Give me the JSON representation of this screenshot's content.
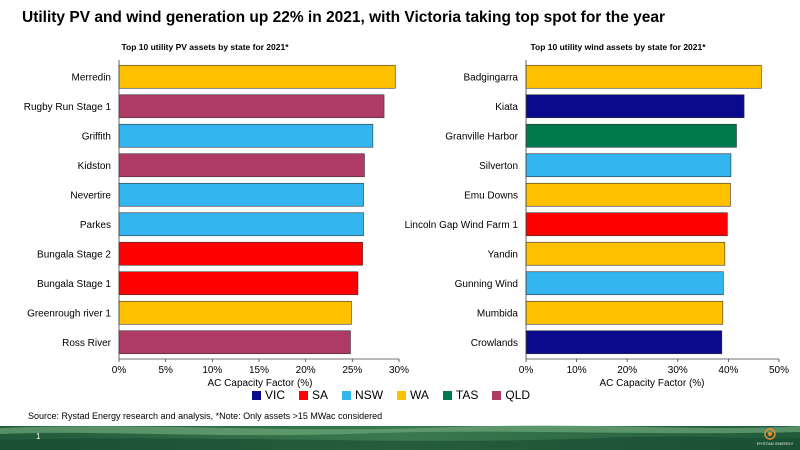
{
  "title": "Utility PV and wind generation up 22% in 2021, with Victoria taking top spot for the year",
  "source": "Source: Rystad Energy research and analysis, *Note: Only assets >15 MWac considered",
  "page_number": "1",
  "logo_text": "RYSTAD ENERGY",
  "colors": {
    "VIC": "#0a0a8c",
    "SA": "#ff0000",
    "NSW": "#33b5f0",
    "WA": "#ffc000",
    "TAS": "#007a4c",
    "QLD": "#b03a66"
  },
  "legend": [
    {
      "key": "VIC",
      "label": "VIC"
    },
    {
      "key": "SA",
      "label": "SA"
    },
    {
      "key": "NSW",
      "label": "NSW"
    },
    {
      "key": "WA",
      "label": "WA"
    },
    {
      "key": "TAS",
      "label": "TAS"
    },
    {
      "key": "QLD",
      "label": "QLD"
    }
  ],
  "chart_data": [
    {
      "type": "bar",
      "orientation": "horizontal",
      "title": "Top 10 utility PV assets by state for 2021*",
      "xlabel": "AC Capacity Factor (%)",
      "xlim": [
        0,
        30
      ],
      "ticks": [
        "0%",
        "5%",
        "10%",
        "15%",
        "20%",
        "25%",
        "30%"
      ],
      "categories": [
        "Merredin",
        "Rugby Run Stage 1",
        "Griffith",
        "Kidston",
        "Nevertire",
        "Parkes",
        "Bungala Stage 2",
        "Bungala Stage 1",
        "Greenrough river 1",
        "Ross River"
      ],
      "values": [
        29.6,
        28.4,
        27.2,
        26.3,
        26.2,
        26.2,
        26.1,
        25.6,
        24.9,
        24.8
      ],
      "states": [
        "WA",
        "QLD",
        "NSW",
        "QLD",
        "NSW",
        "NSW",
        "SA",
        "SA",
        "WA",
        "QLD"
      ]
    },
    {
      "type": "bar",
      "orientation": "horizontal",
      "title": "Top 10 utility wind assets by state for 2021*",
      "xlabel": "AC Capacity Factor (%)",
      "xlim": [
        0,
        50
      ],
      "ticks": [
        "0%",
        "10%",
        "20%",
        "30%",
        "40%",
        "50%"
      ],
      "categories": [
        "Badgingarra",
        "Kiata",
        "Granville Harbor",
        "Silverton",
        "Emu Downs",
        "Lincoln Gap Wind Farm 1",
        "Yandin",
        "Gunning Wind",
        "Mumbida",
        "Crowlands"
      ],
      "values": [
        46.5,
        43.1,
        41.6,
        40.5,
        40.4,
        39.8,
        39.3,
        39.0,
        38.9,
        38.7
      ],
      "states": [
        "WA",
        "VIC",
        "TAS",
        "NSW",
        "WA",
        "SA",
        "WA",
        "NSW",
        "WA",
        "VIC"
      ]
    }
  ]
}
